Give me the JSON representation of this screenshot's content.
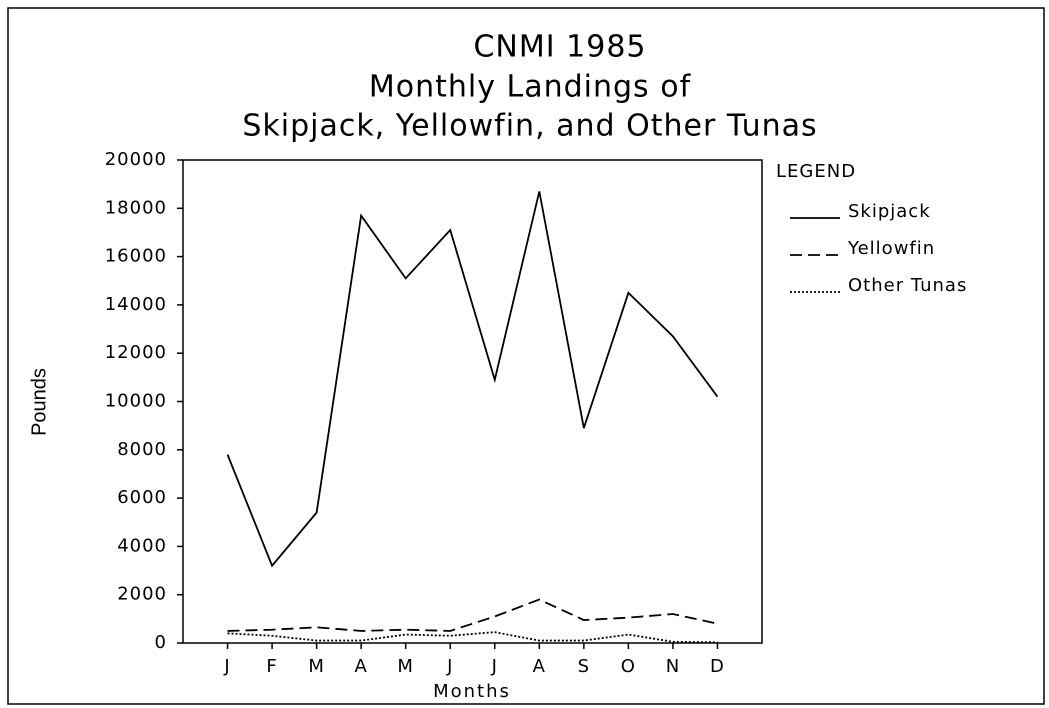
{
  "chart_data": {
    "type": "line",
    "title": [
      "CNMI 1985",
      "Monthly Landings of",
      "Skipjack, Yellowfin, and Other Tunas"
    ],
    "x_label": "Months",
    "y_label": "Pounds",
    "legend_title": "LEGEND",
    "legend": "right",
    "categories": [
      "J",
      "F",
      "M",
      "A",
      "M",
      "J",
      "J",
      "A",
      "S",
      "O",
      "N",
      "D"
    ],
    "series": [
      {
        "name": "Skipjack",
        "color": "#000000",
        "dash": "none",
        "values": [
          7800,
          3200,
          5400,
          17700,
          15100,
          17100,
          10900,
          18700,
          8900,
          14500,
          12700,
          10200
        ]
      },
      {
        "name": "Yellowfin",
        "color": "#000000",
        "dash": "12 6",
        "values": [
          500,
          550,
          650,
          500,
          550,
          500,
          1100,
          1800,
          950,
          1050,
          1200,
          800
        ]
      },
      {
        "name": "Other Tunas",
        "color": "#000000",
        "dash": "2 2",
        "values": [
          400,
          300,
          100,
          100,
          350,
          300,
          450,
          100,
          100,
          350,
          50,
          30
        ]
      }
    ],
    "ylim": [
      0,
      20000
    ],
    "yticks": [
      0,
      2000,
      4000,
      6000,
      8000,
      10000,
      12000,
      14000,
      16000,
      18000,
      20000
    ],
    "grid": false
  }
}
